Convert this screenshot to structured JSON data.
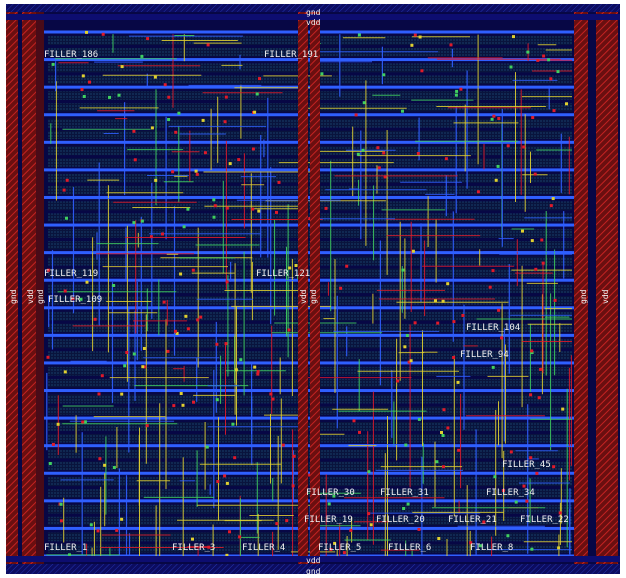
{
  "layout": {
    "net_labels": {
      "top_gnd": "gnd",
      "top_vdd": "vdd",
      "bottom_vdd": "vdd",
      "bottom_gnd": "gnd",
      "left_gnd": "gnd",
      "left_vdd": "vdd",
      "left_gnd_inner": "gnd",
      "center_gnd": "gnd",
      "center_vdd": "vdd",
      "right_gnd": "gnd",
      "right_vdd": "vdd"
    },
    "cell_labels": {
      "f186": "FILLER_186",
      "f191": "FILLER_191",
      "f119": "FILLER_119",
      "f121": "FILLER_121",
      "f109": "FILLER_109",
      "f104": "FILLER_104",
      "f94": "FILLER_94",
      "f45": "FILLER_45",
      "f30": "FILLER_30",
      "f31": "FILLER_31",
      "f34": "FILLER_34",
      "f19": "FILLER_19",
      "f20": "FILLER_20",
      "f21": "FILLER_21",
      "f22": "FILLER_22",
      "f1": "FILLER_1",
      "f3": "FILLER_3",
      "f4": "FILLER_4",
      "f5": "FILLER_5",
      "f6": "FILLER_6",
      "f8": "FILLER_8"
    },
    "colors": {
      "background": "#070745",
      "metal1": "#2f5fff",
      "metal2": "#e0d030",
      "poly": "#e01a2a",
      "well": "#7a1212",
      "via": "#40d060",
      "diffusion": "#1c6aa0",
      "label": "#f2f2f2"
    }
  }
}
